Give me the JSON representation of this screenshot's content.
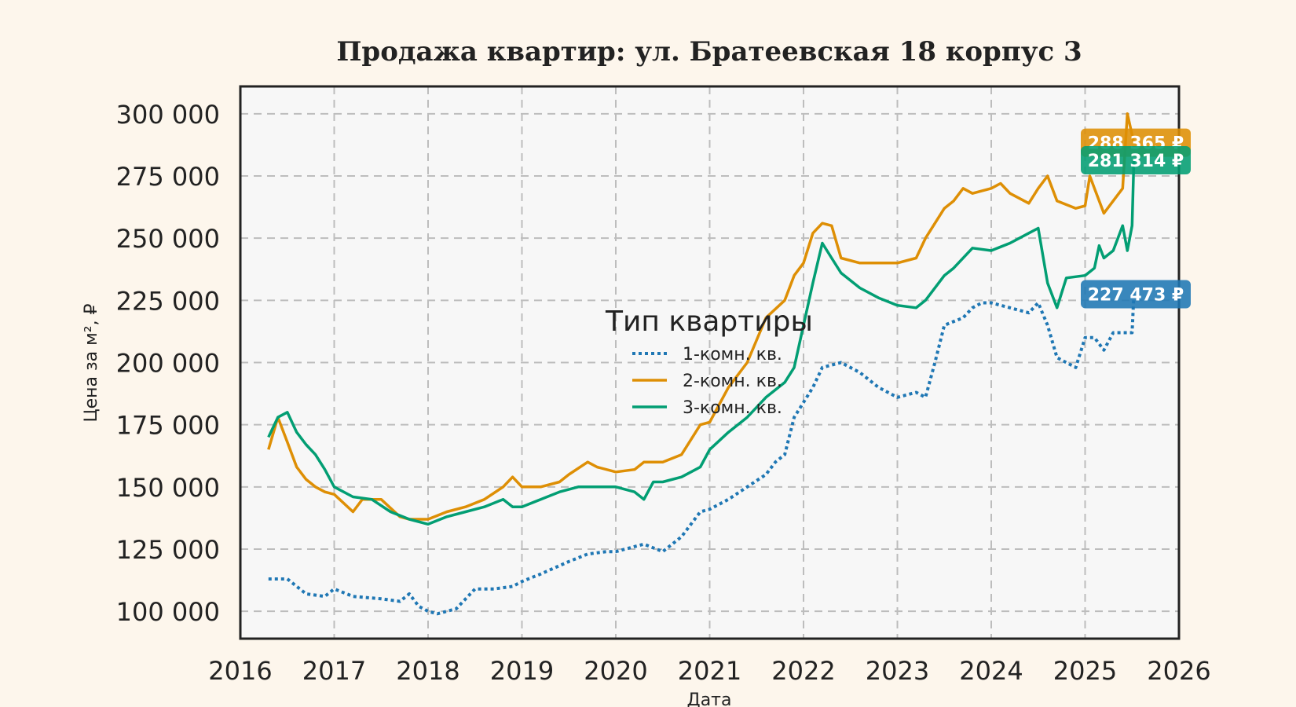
{
  "chart_data": {
    "type": "line",
    "title": "Продажа квартир: ул. Братеевская 18 корпус 3",
    "xlabel": "Дата",
    "ylabel": "Цена за м², ₽",
    "xlim": [
      2016.0,
      2026.0
    ],
    "ylim": [
      89000,
      311000
    ],
    "x_ticks": [
      2016,
      2017,
      2018,
      2019,
      2020,
      2021,
      2022,
      2023,
      2024,
      2025,
      2026
    ],
    "y_ticks": [
      100000,
      125000,
      150000,
      175000,
      200000,
      225000,
      250000,
      275000,
      300000
    ],
    "y_tick_labels": [
      "100 000",
      "125 000",
      "150 000",
      "175 000",
      "200 000",
      "225 000",
      "250 000",
      "275 000",
      "300 000"
    ],
    "grid": true,
    "legend": {
      "title": "Тип квартиры",
      "placement": "center",
      "entries": [
        "1-комн. кв.",
        "2-комн. кв.",
        "3-комн. кв."
      ]
    },
    "series": [
      {
        "name": "1-комн. кв.",
        "color": "#1f77b4",
        "style": "dotted",
        "x": [
          2016.3,
          2016.5,
          2016.7,
          2016.9,
          2017.0,
          2017.2,
          2017.5,
          2017.7,
          2017.8,
          2017.9,
          2018.0,
          2018.1,
          2018.3,
          2018.5,
          2018.7,
          2018.9,
          2019.0,
          2019.2,
          2019.5,
          2019.7,
          2019.9,
          2020.0,
          2020.2,
          2020.3,
          2020.5,
          2020.7,
          2020.9,
          2021.0,
          2021.2,
          2021.4,
          2021.6,
          2021.7,
          2021.8,
          2021.9,
          2022.0,
          2022.1,
          2022.2,
          2022.4,
          2022.6,
          2022.8,
          2023.0,
          2023.2,
          2023.3,
          2023.4,
          2023.5,
          2023.7,
          2023.8,
          2023.9,
          2024.0,
          2024.2,
          2024.4,
          2024.5,
          2024.6,
          2024.7,
          2024.8,
          2024.9,
          2025.0,
          2025.1,
          2025.2,
          2025.3,
          2025.4,
          2025.5,
          2025.52
        ],
        "values": [
          113000,
          113000,
          107000,
          106000,
          109000,
          106000,
          105000,
          104000,
          107000,
          102000,
          100000,
          99000,
          101000,
          109000,
          109000,
          110000,
          112000,
          115000,
          120000,
          123000,
          124000,
          124000,
          126000,
          127000,
          124000,
          130000,
          140000,
          141000,
          145000,
          150000,
          155000,
          160000,
          163000,
          178000,
          184000,
          190000,
          198000,
          200000,
          196000,
          190000,
          186000,
          188000,
          186000,
          200000,
          215000,
          218000,
          222000,
          224000,
          224000,
          222000,
          220000,
          224000,
          215000,
          202000,
          200000,
          198000,
          210000,
          210000,
          205000,
          212000,
          212000,
          212000,
          227473
        ]
      },
      {
        "name": "2-комн. кв.",
        "color": "#de8f05",
        "style": "solid",
        "x": [
          2016.3,
          2016.4,
          2016.5,
          2016.6,
          2016.7,
          2016.8,
          2016.9,
          2017.0,
          2017.2,
          2017.3,
          2017.5,
          2017.7,
          2017.8,
          2018.0,
          2018.2,
          2018.4,
          2018.6,
          2018.8,
          2018.9,
          2019.0,
          2019.2,
          2019.4,
          2019.5,
          2019.7,
          2019.8,
          2020.0,
          2020.2,
          2020.3,
          2020.5,
          2020.7,
          2020.9,
          2021.0,
          2021.2,
          2021.4,
          2021.6,
          2021.8,
          2021.9,
          2022.0,
          2022.1,
          2022.2,
          2022.3,
          2022.4,
          2022.6,
          2022.8,
          2023.0,
          2023.2,
          2023.3,
          2023.5,
          2023.6,
          2023.7,
          2023.8,
          2024.0,
          2024.1,
          2024.2,
          2024.4,
          2024.5,
          2024.6,
          2024.7,
          2024.9,
          2025.0,
          2025.05,
          2025.1,
          2025.2,
          2025.3,
          2025.4,
          2025.45,
          2025.52
        ],
        "values": [
          165000,
          178000,
          168000,
          158000,
          153000,
          150000,
          148000,
          147000,
          140000,
          145000,
          145000,
          138000,
          137000,
          137000,
          140000,
          142000,
          145000,
          150000,
          154000,
          150000,
          150000,
          152000,
          155000,
          160000,
          158000,
          156000,
          157000,
          160000,
          160000,
          163000,
          175000,
          176000,
          190000,
          200000,
          218000,
          225000,
          235000,
          240000,
          252000,
          256000,
          255000,
          242000,
          240000,
          240000,
          240000,
          242000,
          250000,
          262000,
          265000,
          270000,
          268000,
          270000,
          272000,
          268000,
          264000,
          270000,
          275000,
          265000,
          262000,
          263000,
          275000,
          270000,
          260000,
          265000,
          270000,
          300000,
          288365
        ]
      },
      {
        "name": "3-комн. кв.",
        "color": "#029e73",
        "style": "solid",
        "x": [
          2016.3,
          2016.4,
          2016.5,
          2016.6,
          2016.7,
          2016.8,
          2016.9,
          2017.0,
          2017.2,
          2017.4,
          2017.6,
          2017.8,
          2018.0,
          2018.2,
          2018.4,
          2018.6,
          2018.8,
          2018.9,
          2019.0,
          2019.2,
          2019.4,
          2019.6,
          2019.8,
          2020.0,
          2020.2,
          2020.3,
          2020.4,
          2020.5,
          2020.7,
          2020.9,
          2021.0,
          2021.2,
          2021.4,
          2021.6,
          2021.8,
          2021.9,
          2022.0,
          2022.1,
          2022.2,
          2022.3,
          2022.4,
          2022.6,
          2022.8,
          2023.0,
          2023.2,
          2023.3,
          2023.5,
          2023.6,
          2023.8,
          2024.0,
          2024.2,
          2024.4,
          2024.5,
          2024.6,
          2024.7,
          2024.8,
          2025.0,
          2025.1,
          2025.15,
          2025.2,
          2025.3,
          2025.4,
          2025.45,
          2025.5,
          2025.52
        ],
        "values": [
          170000,
          178000,
          180000,
          172000,
          167000,
          163000,
          157000,
          150000,
          146000,
          145000,
          140000,
          137000,
          135000,
          138000,
          140000,
          142000,
          145000,
          142000,
          142000,
          145000,
          148000,
          150000,
          150000,
          150000,
          148000,
          145000,
          152000,
          152000,
          154000,
          158000,
          165000,
          172000,
          178000,
          186000,
          192000,
          198000,
          215000,
          232000,
          248000,
          242000,
          236000,
          230000,
          226000,
          223000,
          222000,
          225000,
          235000,
          238000,
          246000,
          245000,
          248000,
          252000,
          254000,
          232000,
          222000,
          234000,
          235000,
          238000,
          247000,
          242000,
          245000,
          255000,
          245000,
          255000,
          281314
        ]
      }
    ],
    "annotations": [
      {
        "text": "288 365 ₽",
        "series": "2-комн. кв.",
        "value": 288365,
        "color": "#de8f05"
      },
      {
        "text": "281 314 ₽",
        "series": "3-комн. кв.",
        "value": 281314,
        "color": "#029e73"
      },
      {
        "text": "227 473 ₽",
        "series": "1-комн. кв.",
        "value": 227473,
        "color": "#1f77b4"
      }
    ]
  }
}
